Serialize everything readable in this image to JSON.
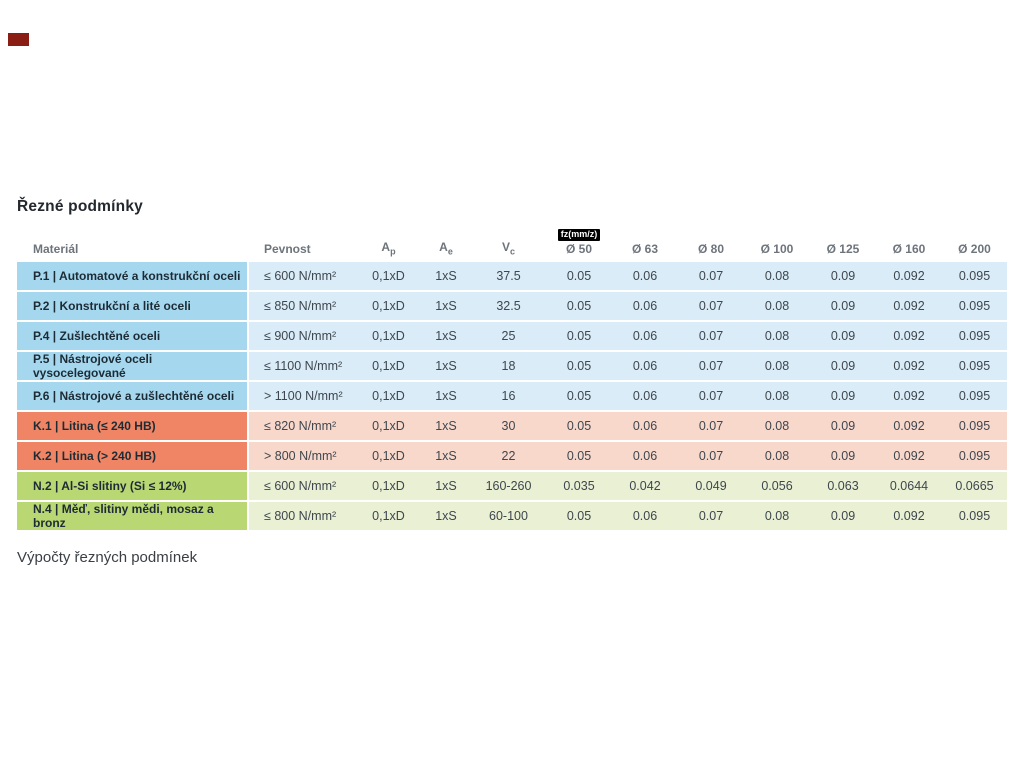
{
  "page": {
    "title": "Řezné podmínky",
    "footer_heading": "Výpočty řezných podmínek"
  },
  "colors": {
    "p_strong": "#a5d8ef",
    "p_light": "#d9ecf8",
    "k_strong": "#ef8565",
    "k_light": "#f9d8cc",
    "n_strong": "#b9d773",
    "n_light": "#e9f0d3",
    "badge_bg": "#000000",
    "badge_text": "#ffffff",
    "marker_red": "#8a1e15"
  },
  "table": {
    "fz_badge_label": "fz(mm/z)",
    "headers": [
      {
        "text": "Materiál",
        "align": "left16"
      },
      {
        "text": "Pevnost",
        "align": "left15"
      },
      {
        "text": "A",
        "sub": "p"
      },
      {
        "text": "A",
        "sub": "e"
      },
      {
        "text": "V",
        "sub": "c"
      },
      {
        "text": "Ø 50",
        "badge": true
      },
      {
        "text": "Ø 63"
      },
      {
        "text": "Ø 80"
      },
      {
        "text": "Ø 100"
      },
      {
        "text": "Ø 125"
      },
      {
        "text": "Ø 160"
      },
      {
        "text": "Ø 200"
      }
    ],
    "rows": [
      {
        "group": "P",
        "material": "P.1 | Automatové a konstrukční oceli",
        "pevnost": "≤ 600 N/mm²",
        "ap": "0,1xD",
        "ae": "1xS",
        "vc": "37.5",
        "fz": [
          "0.05",
          "0.06",
          "0.07",
          "0.08",
          "0.09",
          "0.092",
          "0.095"
        ]
      },
      {
        "group": "P",
        "material": "P.2 | Konstrukční a lité oceli",
        "pevnost": "≤ 850 N/mm²",
        "ap": "0,1xD",
        "ae": "1xS",
        "vc": "32.5",
        "fz": [
          "0.05",
          "0.06",
          "0.07",
          "0.08",
          "0.09",
          "0.092",
          "0.095"
        ]
      },
      {
        "group": "P",
        "material": "P.4 | Zušlechtěné oceli",
        "pevnost": "≤ 900 N/mm²",
        "ap": "0,1xD",
        "ae": "1xS",
        "vc": "25",
        "fz": [
          "0.05",
          "0.06",
          "0.07",
          "0.08",
          "0.09",
          "0.092",
          "0.095"
        ]
      },
      {
        "group": "P",
        "material": "P.5 | Nástrojové oceli vysocelegované",
        "pevnost": "≤ 1100 N/mm²",
        "ap": "0,1xD",
        "ae": "1xS",
        "vc": "18",
        "fz": [
          "0.05",
          "0.06",
          "0.07",
          "0.08",
          "0.09",
          "0.092",
          "0.095"
        ]
      },
      {
        "group": "P",
        "material": "P.6 | Nástrojové a zušlechtěné oceli",
        "pevnost": "> 1100 N/mm²",
        "ap": "0,1xD",
        "ae": "1xS",
        "vc": "16",
        "fz": [
          "0.05",
          "0.06",
          "0.07",
          "0.08",
          "0.09",
          "0.092",
          "0.095"
        ]
      },
      {
        "group": "K",
        "material": "K.1 | Litina (≤ 240 HB)",
        "pevnost": "≤ 820 N/mm²",
        "ap": "0,1xD",
        "ae": "1xS",
        "vc": "30",
        "fz": [
          "0.05",
          "0.06",
          "0.07",
          "0.08",
          "0.09",
          "0.092",
          "0.095"
        ]
      },
      {
        "group": "K",
        "material": "K.2 | Litina (> 240 HB)",
        "pevnost": "> 800 N/mm²",
        "ap": "0,1xD",
        "ae": "1xS",
        "vc": "22",
        "fz": [
          "0.05",
          "0.06",
          "0.07",
          "0.08",
          "0.09",
          "0.092",
          "0.095"
        ]
      },
      {
        "group": "N",
        "material": "N.2 | Al-Si slitiny (Si ≤ 12%)",
        "pevnost": "≤ 600 N/mm²",
        "ap": "0,1xD",
        "ae": "1xS",
        "vc": "160-260",
        "fz": [
          "0.035",
          "0.042",
          "0.049",
          "0.056",
          "0.063",
          "0.0644",
          "0.0665"
        ]
      },
      {
        "group": "N",
        "material": "N.4 | Měď, slitiny mědi, mosaz a bronz",
        "pevnost": "≤ 800 N/mm²",
        "ap": "0,1xD",
        "ae": "1xS",
        "vc": "60-100",
        "fz": [
          "0.05",
          "0.06",
          "0.07",
          "0.08",
          "0.09",
          "0.092",
          "0.095"
        ]
      }
    ]
  }
}
